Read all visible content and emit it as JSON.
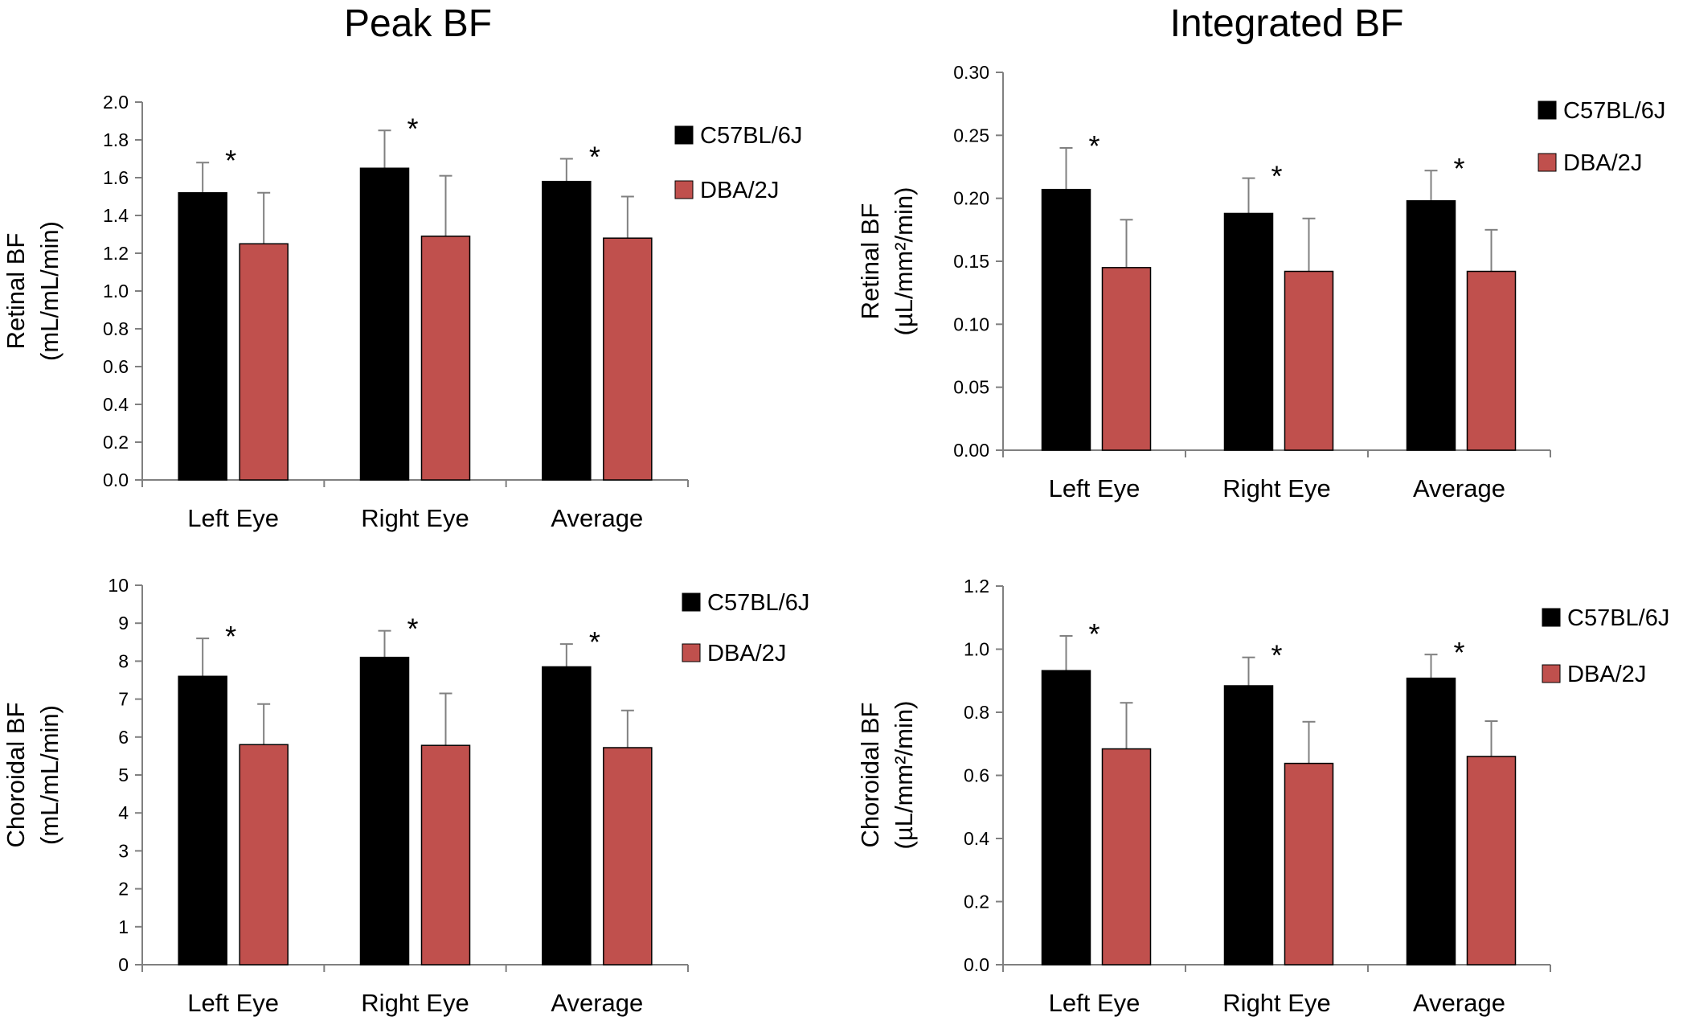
{
  "titles": {
    "peak": "Peak BF",
    "integrated": "Integrated BF"
  },
  "colors": {
    "C57BL/6J": "#000000",
    "DBA/2J": "#c0504d",
    "axis": "#808080"
  },
  "chart_data": [
    {
      "id": "peak-retinal",
      "type": "bar",
      "ylabel": [
        "Retinal BF",
        "(mL/mL/min)"
      ],
      "categories": [
        "Left Eye",
        "Right Eye",
        "Average"
      ],
      "ylim": [
        0,
        2.0
      ],
      "yticks": [
        "0.0",
        "0.2",
        "0.4",
        "0.6",
        "0.8",
        "1.0",
        "1.2",
        "1.4",
        "1.6",
        "1.8",
        "2.0"
      ],
      "series": [
        {
          "name": "C57BL/6J",
          "values": [
            1.52,
            1.65,
            1.58
          ],
          "errors": [
            0.16,
            0.2,
            0.12
          ]
        },
        {
          "name": "DBA/2J",
          "values": [
            1.25,
            1.29,
            1.28
          ],
          "errors": [
            0.27,
            0.32,
            0.22
          ]
        }
      ],
      "significance": [
        "*",
        "*",
        "*"
      ]
    },
    {
      "id": "int-retinal",
      "type": "bar",
      "ylabel": [
        "Retinal BF",
        "(µL/mm²/min)"
      ],
      "categories": [
        "Left Eye",
        "Right Eye",
        "Average"
      ],
      "ylim": [
        0,
        0.3
      ],
      "yticks": [
        "0.00",
        "0.05",
        "0.10",
        "0.15",
        "0.20",
        "0.25",
        "0.30"
      ],
      "series": [
        {
          "name": "C57BL/6J",
          "values": [
            0.207,
            0.188,
            0.198
          ],
          "errors": [
            0.033,
            0.028,
            0.024
          ]
        },
        {
          "name": "DBA/2J",
          "values": [
            0.145,
            0.142,
            0.142
          ],
          "errors": [
            0.038,
            0.042,
            0.033
          ]
        }
      ],
      "significance": [
        "*",
        "*",
        "*"
      ]
    },
    {
      "id": "peak-choroidal",
      "type": "bar",
      "ylabel": [
        "Choroidal BF",
        "(mL/mL/min)"
      ],
      "categories": [
        "Left Eye",
        "Right Eye",
        "Average"
      ],
      "ylim": [
        0,
        10
      ],
      "yticks": [
        "0",
        "1",
        "2",
        "3",
        "4",
        "5",
        "6",
        "7",
        "8",
        "9",
        "10"
      ],
      "series": [
        {
          "name": "C57BL/6J",
          "values": [
            7.6,
            8.1,
            7.85
          ],
          "errors": [
            1.0,
            0.7,
            0.6
          ]
        },
        {
          "name": "DBA/2J",
          "values": [
            5.8,
            5.78,
            5.72
          ],
          "errors": [
            1.07,
            1.37,
            0.98
          ]
        }
      ],
      "significance": [
        "*",
        "*",
        "*"
      ]
    },
    {
      "id": "int-choroidal",
      "type": "bar",
      "ylabel": [
        "Choroidal BF",
        "(µL/mm²/min)"
      ],
      "categories": [
        "Left Eye",
        "Right Eye",
        "Average"
      ],
      "ylim": [
        0,
        1.2
      ],
      "yticks": [
        "0.0",
        "0.2",
        "0.4",
        "0.6",
        "0.8",
        "1.0",
        "1.2"
      ],
      "series": [
        {
          "name": "C57BL/6J",
          "values": [
            0.932,
            0.884,
            0.908
          ],
          "errors": [
            0.11,
            0.09,
            0.075
          ]
        },
        {
          "name": "DBA/2J",
          "values": [
            0.684,
            0.638,
            0.66
          ],
          "errors": [
            0.146,
            0.132,
            0.112
          ]
        }
      ],
      "significance": [
        "*",
        "*",
        "*"
      ]
    }
  ]
}
